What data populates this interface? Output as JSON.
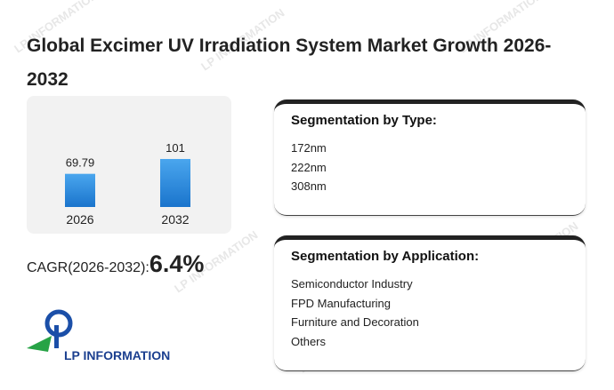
{
  "title": "Global Excimer UV Irradiation System Market Growth 2026-2032",
  "watermark": "LP INFORMATION",
  "chart_data": {
    "type": "bar",
    "categories": [
      "2026",
      "2032"
    ],
    "values": [
      69.79,
      101
    ],
    "color": "#2a8ae0"
  },
  "cagr": {
    "label": "CAGR(2026-2032):",
    "value": "6.4%"
  },
  "segments": [
    {
      "heading": "Segmentation by Type:",
      "items": [
        "172nm",
        "222nm",
        "308nm"
      ]
    },
    {
      "heading": "Segmentation by Application:",
      "items": [
        "Semiconductor Industry",
        "FPD Manufacturing",
        "Furniture and Decoration",
        "Others"
      ]
    }
  ],
  "logo": "LP INFORMATION"
}
